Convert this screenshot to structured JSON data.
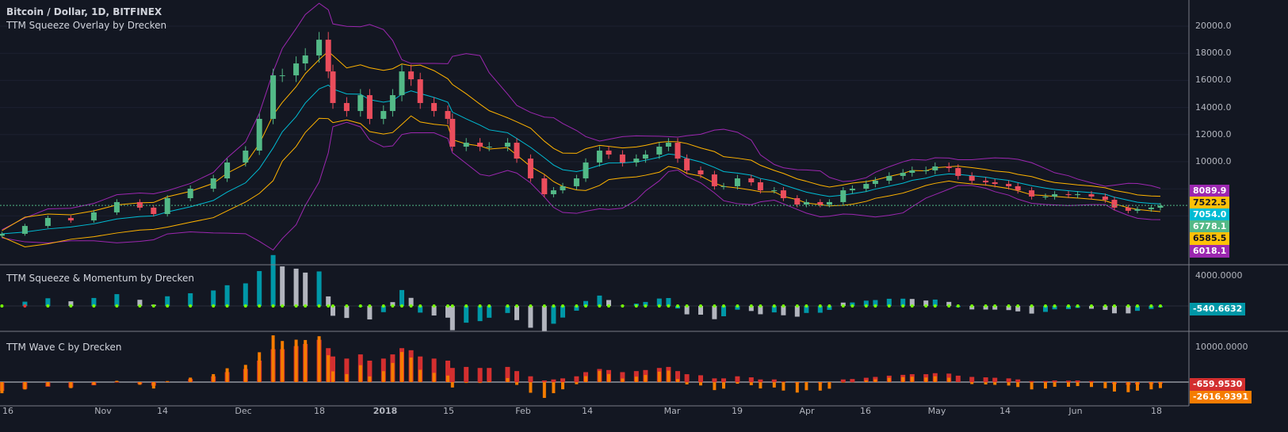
{
  "header": {
    "symbol_title": "Bitcoin / Dollar, 1D, BITFINEX",
    "overlay_title": "TTM Squeeze Overlay by Drecken",
    "momentum_title": "TTM Squeeze & Momentum by Drecken",
    "wave_title": "TTM Wave C by Drecken"
  },
  "colors": {
    "background": "#131722",
    "up": "#53b987",
    "down": "#eb4d5c",
    "bollinger": "#9c27b0",
    "keltner": "#ffb300",
    "ema": "#00bcd4",
    "momentum_up": "#0097a7",
    "momentum_down": "#b2b5be",
    "squeeze_off": "#76ff03",
    "squeeze_on": "#e53935",
    "wave_a": "#d32f2f",
    "wave_b": "#f57c00"
  },
  "price_axis": {
    "ticks": [
      "20000.0",
      "18000.0",
      "16000.0",
      "14000.0",
      "12000.0",
      "10000.0"
    ]
  },
  "price_tags": [
    {
      "label": "8089.9",
      "bg": "#9c27b0",
      "fg": "#ffffff"
    },
    {
      "label": "7522.5",
      "bg": "#ffc107",
      "fg": "#131722"
    },
    {
      "label": "7054.0",
      "bg": "#00bcd4",
      "fg": "#ffffff"
    },
    {
      "label": "6778.1",
      "bg": "#53b987",
      "fg": "#ffffff"
    },
    {
      "label": "6585.5",
      "bg": "#ffc107",
      "fg": "#131722"
    },
    {
      "label": "6018.1",
      "bg": "#9c27b0",
      "fg": "#ffffff"
    }
  ],
  "momentum_axis": {
    "ticks": [
      "4000.0000"
    ],
    "last": {
      "label": "-540.6632",
      "bg": "#0097a7"
    }
  },
  "wave_axis": {
    "ticks": [
      "10000.0000"
    ],
    "last_a": {
      "label": "-659.9530",
      "bg": "#d32f2f"
    },
    "last_b": {
      "label": "-2616.9391",
      "bg": "#f57c00"
    }
  },
  "time_axis": {
    "ticks": [
      "16",
      "Nov",
      "14",
      "Dec",
      "18",
      "2018",
      "15",
      "Feb",
      "14",
      "Mar",
      "19",
      "Apr",
      "16",
      "May",
      "14",
      "Jun",
      "18"
    ]
  },
  "chart_data": {
    "type": "candlestick",
    "ylim": [
      4000,
      21000
    ],
    "last_price": 6778.1,
    "series": [
      [
        "2017-10-10",
        4680
      ],
      [
        "2017-10-15",
        5260
      ],
      [
        "2017-10-20",
        5850
      ],
      [
        "2017-10-25",
        5670
      ],
      [
        "2017-10-30",
        6260
      ],
      [
        "2017-11-04",
        7020
      ],
      [
        "2017-11-09",
        6610
      ],
      [
        "2017-11-12",
        6140
      ],
      [
        "2017-11-15",
        7310
      ],
      [
        "2017-11-20",
        8010
      ],
      [
        "2017-11-25",
        8770
      ],
      [
        "2017-11-28",
        9940
      ],
      [
        "2017-12-02",
        10820
      ],
      [
        "2017-12-05",
        13160
      ],
      [
        "2017-12-08",
        16370
      ],
      [
        "2017-12-10",
        16370
      ],
      [
        "2017-12-13",
        17250
      ],
      [
        "2017-12-15",
        17840
      ],
      [
        "2017-12-18",
        19000
      ],
      [
        "2017-12-20",
        16660
      ],
      [
        "2017-12-21",
        14330
      ],
      [
        "2017-12-24",
        13740
      ],
      [
        "2017-12-27",
        14910
      ],
      [
        "2017-12-29",
        13160
      ],
      [
        "2018-01-01",
        13740
      ],
      [
        "2018-01-03",
        14910
      ],
      [
        "2018-01-05",
        16660
      ],
      [
        "2018-01-07",
        16080
      ],
      [
        "2018-01-09",
        14330
      ],
      [
        "2018-01-12",
        13740
      ],
      [
        "2018-01-15",
        13160
      ],
      [
        "2018-01-16",
        11110
      ],
      [
        "2018-01-19",
        11400
      ],
      [
        "2018-01-22",
        11110
      ],
      [
        "2018-01-24",
        11110
      ],
      [
        "2018-01-28",
        11400
      ],
      [
        "2018-01-30",
        10230
      ],
      [
        "2018-02-02",
        8770
      ],
      [
        "2018-02-05",
        7600
      ],
      [
        "2018-02-07",
        7890
      ],
      [
        "2018-02-09",
        8190
      ],
      [
        "2018-02-12",
        8770
      ],
      [
        "2018-02-14",
        9940
      ],
      [
        "2018-02-17",
        10820
      ],
      [
        "2018-02-19",
        10530
      ],
      [
        "2018-02-22",
        9940
      ],
      [
        "2018-02-25",
        10230
      ],
      [
        "2018-02-27",
        10530
      ],
      [
        "2018-03-02",
        11110
      ],
      [
        "2018-03-04",
        11400
      ],
      [
        "2018-03-06",
        10230
      ],
      [
        "2018-03-08",
        9360
      ],
      [
        "2018-03-11",
        9060
      ],
      [
        "2018-03-14",
        8190
      ],
      [
        "2018-03-16",
        8190
      ],
      [
        "2018-03-19",
        8770
      ],
      [
        "2018-03-22",
        8480
      ],
      [
        "2018-03-24",
        7890
      ],
      [
        "2018-03-27",
        7890
      ],
      [
        "2018-03-29",
        7310
      ],
      [
        "2018-04-01",
        6840
      ],
      [
        "2018-04-03",
        7020
      ],
      [
        "2018-04-06",
        6840
      ],
      [
        "2018-04-08",
        7020
      ],
      [
        "2018-04-11",
        7890
      ],
      [
        "2018-04-13",
        8010
      ],
      [
        "2018-04-16",
        8360
      ],
      [
        "2018-04-18",
        8600
      ],
      [
        "2018-04-21",
        8950
      ],
      [
        "2018-04-24",
        9180
      ],
      [
        "2018-04-26",
        9360
      ],
      [
        "2018-04-29",
        9360
      ],
      [
        "2018-05-01",
        9650
      ],
      [
        "2018-05-04",
        9530
      ],
      [
        "2018-05-06",
        8950
      ],
      [
        "2018-05-09",
        8600
      ],
      [
        "2018-05-12",
        8480
      ],
      [
        "2018-05-14",
        8360
      ],
      [
        "2018-05-17",
        8190
      ],
      [
        "2018-05-19",
        7890
      ],
      [
        "2018-05-22",
        7430
      ],
      [
        "2018-05-25",
        7430
      ],
      [
        "2018-05-27",
        7600
      ],
      [
        "2018-05-30",
        7540
      ],
      [
        "2018-06-01",
        7600
      ],
      [
        "2018-06-04",
        7430
      ],
      [
        "2018-06-07",
        7190
      ],
      [
        "2018-06-09",
        6610
      ],
      [
        "2018-06-12",
        6380
      ],
      [
        "2018-06-14",
        6500
      ],
      [
        "2018-06-17",
        6610
      ],
      [
        "2018-06-19",
        6750
      ]
    ]
  }
}
